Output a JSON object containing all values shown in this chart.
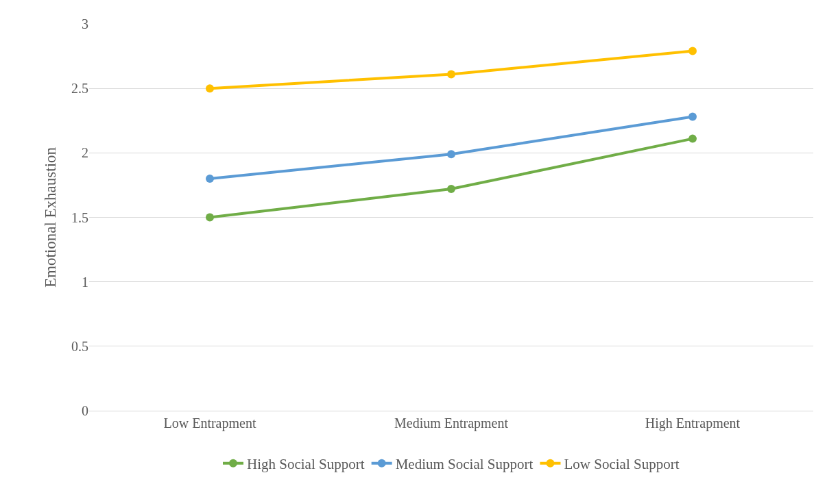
{
  "chart_data": {
    "type": "line",
    "ylabel": "Emotional Exhaustion",
    "categories": [
      "Low Entrapment",
      "Medium Entrapment",
      "High Entrapment"
    ],
    "series": [
      {
        "name": "High Social Support",
        "color": "#70ad47",
        "values": [
          1.5,
          1.72,
          2.11
        ]
      },
      {
        "name": "Medium Social Support",
        "color": "#5b9bd5",
        "values": [
          1.8,
          1.99,
          2.28
        ]
      },
      {
        "name": "Low Social Support",
        "color": "#ffc000",
        "values": [
          2.5,
          2.61,
          2.79
        ]
      }
    ],
    "ylim": [
      0,
      3
    ],
    "yticks": [
      0,
      0.5,
      1,
      1.5,
      2,
      2.5,
      3
    ],
    "grid": "y",
    "legend": "bottom",
    "marker": "circle",
    "line_style": "solid"
  }
}
